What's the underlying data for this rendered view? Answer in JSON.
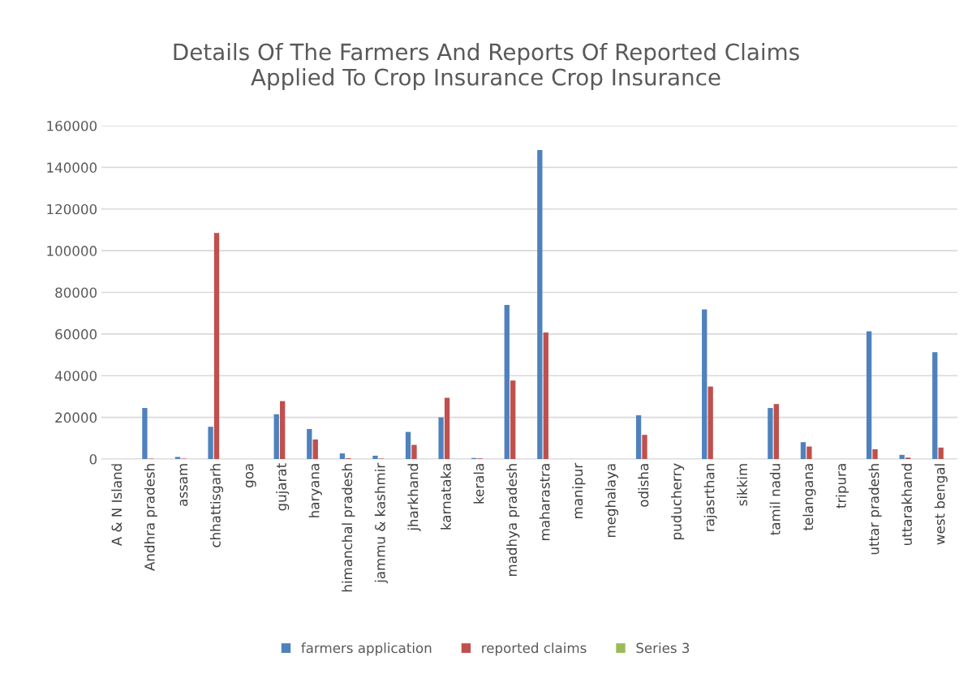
{
  "chart_data": {
    "type": "bar",
    "title": "Details Of The Farmers And Reports Of Reported Claims\nApplied To Crop Insurance Crop Insurance",
    "categories": [
      "A & N Island",
      "Andhra pradesh",
      "assam",
      "chhattisgarh",
      "goa",
      "gujarat",
      "haryana",
      "himanchal pradesh",
      "jammu & kashmir",
      "jharkhand",
      "karnataka",
      "kerala",
      "madhya pradesh",
      "maharastra",
      "manipur",
      "meghalaya",
      "odisha",
      "puducherry",
      "rajasrthan",
      "sikkim",
      "tamil nadu",
      "telangana",
      "tripura",
      "uttar pradesh",
      "uttarakhand",
      "west bengal"
    ],
    "series": [
      {
        "name": "farmers application",
        "color": "#4f81bd",
        "values": [
          0,
          24500,
          1000,
          15500,
          0,
          21500,
          14400,
          2700,
          1600,
          13000,
          20000,
          500,
          74000,
          148300,
          0,
          0,
          21000,
          0,
          71800,
          0,
          24500,
          8100,
          0,
          61300,
          2000,
          51300
        ]
      },
      {
        "name": "reported claims",
        "color": "#c0504d",
        "values": [
          0,
          200,
          200,
          108500,
          0,
          27800,
          9400,
          400,
          200,
          6800,
          29400,
          300,
          37700,
          60700,
          0,
          0,
          11600,
          0,
          34800,
          0,
          26400,
          6000,
          0,
          4700,
          700,
          5500
        ]
      },
      {
        "name": "Series 3",
        "color": "#9bbb59",
        "values": [
          null,
          null,
          null,
          null,
          null,
          null,
          null,
          null,
          null,
          null,
          null,
          null,
          null,
          null,
          null,
          null,
          null,
          null,
          null,
          null,
          null,
          null,
          null,
          null,
          null,
          null
        ]
      }
    ],
    "ylim": [
      0,
      160000
    ],
    "yticks": [
      0,
      20000,
      40000,
      60000,
      80000,
      100000,
      120000,
      140000,
      160000
    ],
    "grid": "y",
    "legend": "bottom"
  }
}
